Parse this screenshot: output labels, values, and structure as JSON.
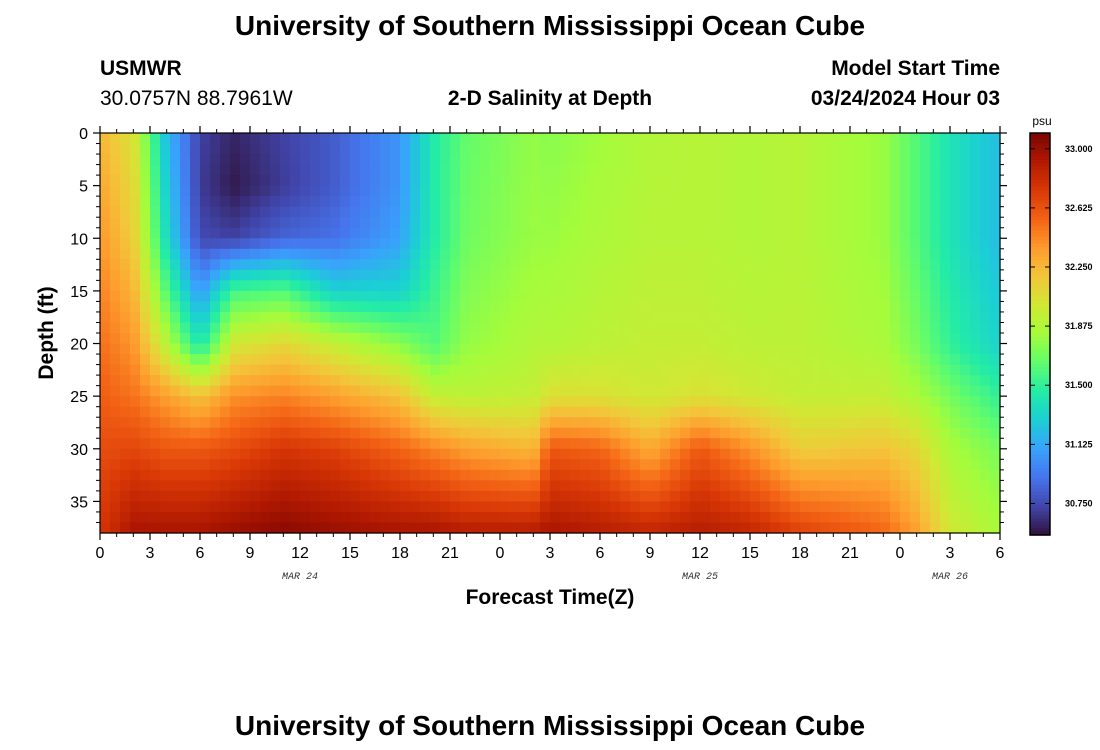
{
  "header": {
    "title": "University of Southern Mississippi Ocean Cube",
    "station": "USMWR",
    "coords": "30.0757N  88.7961W",
    "model_start_label": "Model Start Time",
    "model_start_value": "03/24/2024 Hour 03",
    "footer_title": "University of Southern Mississippi Ocean Cube"
  },
  "chart_data": {
    "type": "heatmap",
    "title": "2-D Salinity at Depth",
    "xlabel": "Forecast Time(Z)",
    "ylabel": "Depth (ft)",
    "x_range_hours": [
      0,
      54
    ],
    "x_tick_labels": [
      "0",
      "3",
      "6",
      "9",
      "12",
      "15",
      "18",
      "21",
      "0",
      "3",
      "6",
      "9",
      "12",
      "15",
      "18",
      "21",
      "0",
      "3",
      "6"
    ],
    "date_labels": [
      {
        "label": "MAR 24",
        "at_hour": 12
      },
      {
        "label": "MAR 25",
        "at_hour": 36
      },
      {
        "label": "MAR 26",
        "at_hour": 51
      }
    ],
    "y_range": [
      0,
      38
    ],
    "y_ticks": [
      0,
      5,
      10,
      15,
      20,
      25,
      30,
      35
    ],
    "colorbar": {
      "unit": "psu",
      "range": [
        30.55,
        33.1
      ],
      "ticks": [
        "33.000",
        "32.625",
        "32.250",
        "31.875",
        "31.500",
        "31.125",
        "30.750"
      ],
      "tick_values": [
        33.0,
        32.625,
        32.25,
        31.875,
        31.5,
        31.125,
        30.75
      ]
    },
    "colormap": [
      "#30123b",
      "#4145ab",
      "#4675ed",
      "#39a2fc",
      "#1bcfd4",
      "#24eca6",
      "#61fc6c",
      "#a4fc3b",
      "#d1e834",
      "#f3c63a",
      "#fe9b2d",
      "#f36315",
      "#d93806",
      "#b11901",
      "#7a0402"
    ],
    "profiles": [
      {
        "hour": 0,
        "depths": [
          0,
          38
        ],
        "values": [
          32.25,
          32.75
        ]
      },
      {
        "hour": 2,
        "depths": [
          0,
          10,
          25,
          38
        ],
        "values": [
          32.05,
          32.15,
          32.5,
          32.95
        ]
      },
      {
        "hour": 4,
        "depths": [
          0,
          10,
          15,
          20,
          25,
          30,
          38
        ],
        "values": [
          31.2,
          31.35,
          31.6,
          31.9,
          32.35,
          32.6,
          32.95
        ]
      },
      {
        "hour": 6,
        "depths": [
          0,
          5,
          10,
          15,
          20,
          25,
          30,
          38
        ],
        "values": [
          30.72,
          30.7,
          30.75,
          31.05,
          31.4,
          32.2,
          32.6,
          32.95
        ]
      },
      {
        "hour": 8,
        "depths": [
          0,
          5,
          10,
          15,
          20,
          25,
          30,
          38
        ],
        "values": [
          30.62,
          30.58,
          30.72,
          31.55,
          32.0,
          32.4,
          32.65,
          33.0
        ]
      },
      {
        "hour": 11,
        "depths": [
          0,
          5,
          10,
          15,
          20,
          25,
          30,
          38
        ],
        "values": [
          30.72,
          30.7,
          30.85,
          31.6,
          32.1,
          32.45,
          32.75,
          33.05
        ]
      },
      {
        "hour": 14,
        "depths": [
          0,
          5,
          10,
          15,
          20,
          25,
          30,
          38
        ],
        "values": [
          30.82,
          30.82,
          30.9,
          31.3,
          31.95,
          32.35,
          32.7,
          33.0
        ]
      },
      {
        "hour": 18,
        "depths": [
          0,
          5,
          10,
          15,
          20,
          25,
          30,
          38
        ],
        "values": [
          31.05,
          31.05,
          31.1,
          31.3,
          31.75,
          32.2,
          32.55,
          32.95
        ]
      },
      {
        "hour": 20,
        "depths": [
          0,
          10,
          20,
          25,
          30,
          38
        ],
        "values": [
          31.45,
          31.45,
          31.6,
          31.95,
          32.45,
          32.95
        ]
      },
      {
        "hour": 22,
        "depths": [
          0,
          10,
          20,
          25,
          30,
          38
        ],
        "values": [
          31.65,
          31.68,
          31.78,
          31.92,
          32.35,
          32.9
        ]
      },
      {
        "hour": 26,
        "depths": [
          0,
          10,
          20,
          25,
          30,
          38
        ],
        "values": [
          31.78,
          31.8,
          31.88,
          31.95,
          32.25,
          32.9
        ]
      },
      {
        "hour": 27,
        "depths": [
          0,
          10,
          20,
          25,
          30,
          38
        ],
        "values": [
          31.75,
          31.8,
          31.88,
          32.05,
          32.6,
          32.95
        ]
      },
      {
        "hour": 30,
        "depths": [
          0,
          10,
          20,
          25,
          30,
          38
        ],
        "values": [
          31.82,
          31.86,
          31.92,
          32.05,
          32.55,
          32.9
        ]
      },
      {
        "hour": 33,
        "depths": [
          0,
          10,
          20,
          25,
          30,
          38
        ],
        "values": [
          31.88,
          31.9,
          31.95,
          32.0,
          32.3,
          32.85
        ]
      },
      {
        "hour": 36,
        "depths": [
          0,
          10,
          20,
          25,
          30,
          38
        ],
        "values": [
          31.9,
          31.9,
          31.95,
          32.05,
          32.6,
          32.9
        ]
      },
      {
        "hour": 39,
        "depths": [
          0,
          10,
          20,
          25,
          30,
          38
        ],
        "values": [
          31.88,
          31.88,
          31.92,
          32.0,
          32.4,
          32.85
        ]
      },
      {
        "hour": 42,
        "depths": [
          0,
          10,
          20,
          25,
          30,
          38
        ],
        "values": [
          31.9,
          31.9,
          31.92,
          31.95,
          32.15,
          32.7
        ]
      },
      {
        "hour": 47,
        "depths": [
          0,
          10,
          20,
          25,
          30,
          38
        ],
        "values": [
          31.8,
          31.8,
          31.85,
          31.95,
          32.2,
          32.55
        ]
      },
      {
        "hour": 49,
        "depths": [
          0,
          10,
          20,
          25,
          30,
          38
        ],
        "values": [
          31.6,
          31.6,
          31.7,
          31.85,
          32.1,
          32.35
        ]
      },
      {
        "hour": 51,
        "depths": [
          0,
          10,
          20,
          25,
          30,
          38
        ],
        "values": [
          31.4,
          31.4,
          31.5,
          31.7,
          31.85,
          32.0
        ]
      },
      {
        "hour": 54,
        "depths": [
          0,
          10,
          20,
          25,
          30,
          38
        ],
        "values": [
          31.2,
          31.2,
          31.3,
          31.5,
          31.7,
          31.85
        ]
      }
    ]
  }
}
